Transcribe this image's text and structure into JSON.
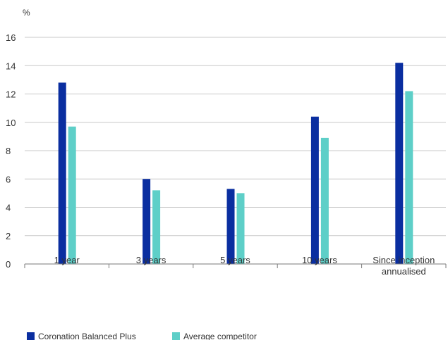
{
  "chart_data": {
    "type": "bar",
    "unit_label": "%",
    "categories": [
      [
        "1 year"
      ],
      [
        "3 years"
      ],
      [
        "5 years"
      ],
      [
        "10 years"
      ],
      [
        "Since inception",
        "annualised"
      ]
    ],
    "series": [
      {
        "name": "Coronation Balanced Plus",
        "color": "#0a2ea0",
        "values": [
          12.8,
          6.0,
          5.3,
          10.4,
          14.2
        ]
      },
      {
        "name": "Average competitor",
        "color": "#5ecfc8",
        "values": [
          9.7,
          5.2,
          5.0,
          8.9,
          12.2
        ]
      }
    ],
    "ylim": [
      0,
      16
    ],
    "yticks": [
      0,
      2,
      4,
      6,
      8,
      10,
      12,
      14,
      16
    ],
    "grid": true,
    "legend_position": "bottom-left",
    "colors": {
      "grid": "#c8c8c8",
      "axis": "#7a7a7a",
      "text": "#333333"
    }
  }
}
